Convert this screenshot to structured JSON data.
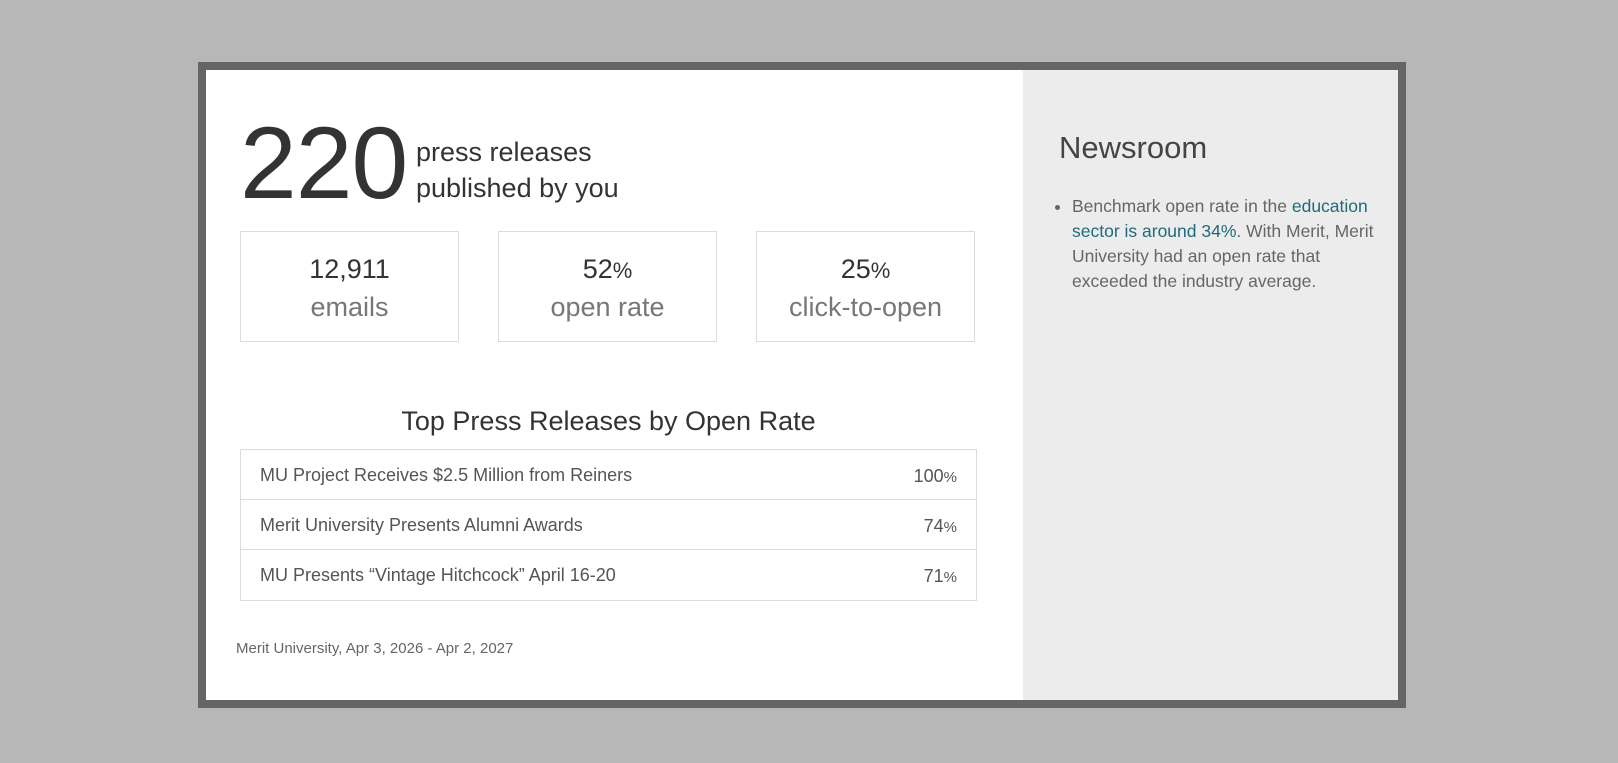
{
  "summary": {
    "count": "220",
    "caption_line1": "press releases",
    "caption_line2": "published by you"
  },
  "stats": [
    {
      "value": "12,911",
      "unit": "",
      "label": "emails"
    },
    {
      "value": "52",
      "unit": "%",
      "label": "open rate"
    },
    {
      "value": "25",
      "unit": "%",
      "label": "click-to-open"
    }
  ],
  "top_releases": {
    "title": "Top Press Releases by Open Rate",
    "rows": [
      {
        "title": "MU Project Receives $2.5 Million from Reiners",
        "rate": "100",
        "unit": "%"
      },
      {
        "title": "Merit University Presents Alumni Awards",
        "rate": "74",
        "unit": "%"
      },
      {
        "title": "MU Presents “Vintage Hitchcock” April 16-20",
        "rate": "71",
        "unit": "%"
      }
    ]
  },
  "footer": {
    "note": "Merit University, Apr 3, 2026 - Apr 2, 2027"
  },
  "sidebar": {
    "title": "Newsroom",
    "bullet": {
      "text_before": "Benchmark open rate in the ",
      "link_text": "education sector is around 34%",
      "text_after": ". With Merit, Merit University had an open rate that exceeded the industry average."
    }
  },
  "colors": {
    "background": "#b7b7b7",
    "frame_border": "#656565",
    "sidebar_background": "#ececec",
    "link": "#1f6b7a"
  }
}
